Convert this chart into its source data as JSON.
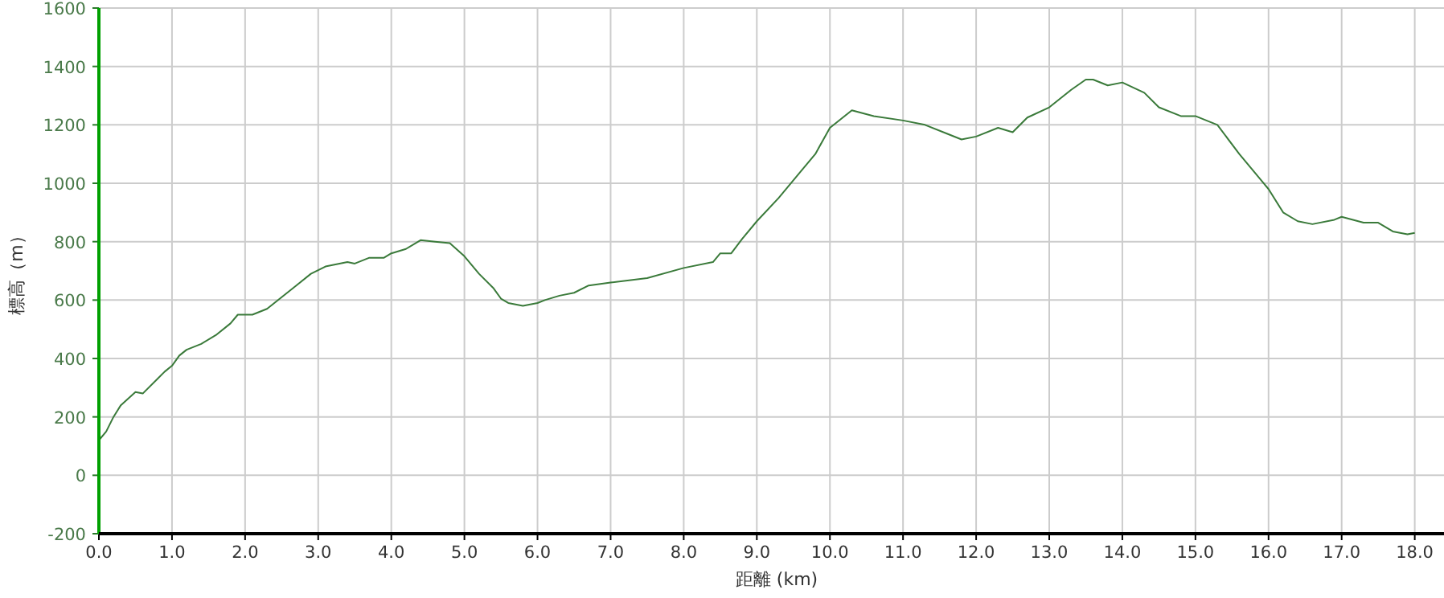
{
  "chart_data": {
    "type": "line",
    "xlabel": "距離 (km)",
    "ylabel": "標高（m）",
    "grid": true,
    "marker": "none",
    "line_style": "solid",
    "xlim": [
      0,
      18.4
    ],
    "ylim": [
      -200,
      1600
    ],
    "xticks": [
      {
        "value": 0,
        "label": "0.0"
      },
      {
        "value": 1,
        "label": "1.0"
      },
      {
        "value": 2,
        "label": "2.0"
      },
      {
        "value": 3,
        "label": "3.0"
      },
      {
        "value": 4,
        "label": "4.0"
      },
      {
        "value": 5,
        "label": "5.0"
      },
      {
        "value": 6,
        "label": "6.0"
      },
      {
        "value": 7,
        "label": "7.0"
      },
      {
        "value": 8,
        "label": "8.0"
      },
      {
        "value": 9,
        "label": "9.0"
      },
      {
        "value": 10,
        "label": "10.0"
      },
      {
        "value": 11,
        "label": "11.0"
      },
      {
        "value": 12,
        "label": "12.0"
      },
      {
        "value": 13,
        "label": "13.0"
      },
      {
        "value": 14,
        "label": "14.0"
      },
      {
        "value": 15,
        "label": "15.0"
      },
      {
        "value": 16,
        "label": "16.0"
      },
      {
        "value": 17,
        "label": "17.0"
      },
      {
        "value": 18,
        "label": "18.0"
      }
    ],
    "yticks": [
      -200,
      0,
      200,
      400,
      600,
      800,
      1000,
      1200,
      1400,
      1600
    ],
    "series": [
      {
        "color": "#3a7a3a",
        "x": [
          0,
          0.1,
          0.2,
          0.3,
          0.5,
          0.6,
          0.8,
          0.9,
          1.0,
          1.1,
          1.2,
          1.4,
          1.6,
          1.8,
          1.9,
          2.1,
          2.3,
          2.5,
          2.7,
          2.9,
          3.1,
          3.4,
          3.5,
          3.7,
          3.9,
          4.0,
          4.2,
          4.4,
          4.6,
          4.8,
          5.0,
          5.2,
          5.4,
          5.5,
          5.6,
          5.8,
          6.0,
          6.1,
          6.3,
          6.5,
          6.7,
          7.0,
          7.5,
          8.0,
          8.4,
          8.5,
          8.65,
          8.8,
          9.0,
          9.3,
          9.6,
          9.8,
          10.0,
          10.3,
          10.6,
          11.0,
          11.3,
          11.6,
          11.8,
          12.0,
          12.3,
          12.5,
          12.7,
          13.0,
          13.3,
          13.5,
          13.6,
          13.8,
          14.0,
          14.3,
          14.5,
          14.8,
          15.0,
          15.3,
          15.6,
          15.9,
          16.0,
          16.2,
          16.4,
          16.6,
          16.9,
          17.0,
          17.3,
          17.5,
          17.7,
          17.9,
          18.0
        ],
        "values": [
          120,
          150,
          200,
          240,
          285,
          280,
          330,
          355,
          375,
          410,
          430,
          450,
          480,
          520,
          550,
          550,
          570,
          610,
          650,
          690,
          715,
          730,
          725,
          745,
          745,
          760,
          775,
          805,
          800,
          795,
          750,
          690,
          640,
          605,
          590,
          580,
          590,
          600,
          615,
          625,
          650,
          660,
          675,
          710,
          730,
          760,
          760,
          810,
          870,
          950,
          1040,
          1100,
          1190,
          1250,
          1230,
          1215,
          1200,
          1170,
          1150,
          1160,
          1190,
          1175,
          1225,
          1260,
          1320,
          1355,
          1355,
          1335,
          1345,
          1310,
          1260,
          1230,
          1230,
          1200,
          1100,
          1010,
          980,
          900,
          870,
          860,
          875,
          885,
          865,
          865,
          835,
          825,
          830
        ]
      }
    ]
  }
}
